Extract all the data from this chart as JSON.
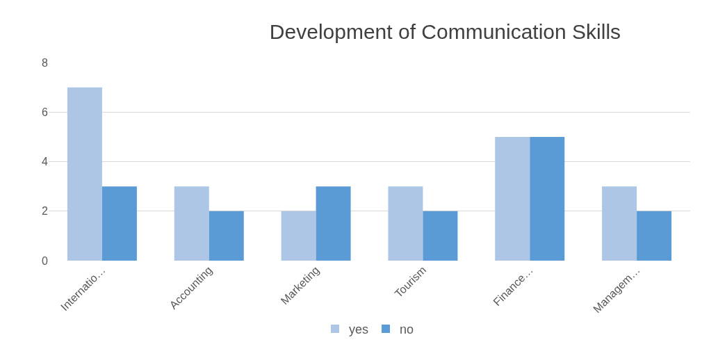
{
  "chart_data": {
    "type": "bar",
    "title": "Development of Communication Skills",
    "categories": [
      "Internatio…",
      "Accounting",
      "Marketing",
      "Tourism",
      "Finance…",
      "Managem…"
    ],
    "series": [
      {
        "name": "yes",
        "color": "#adc6e6",
        "values": [
          7,
          3,
          2,
          3,
          5,
          3
        ]
      },
      {
        "name": "no",
        "color": "#5b9bd5",
        "values": [
          3,
          2,
          3,
          2,
          5,
          2
        ]
      }
    ],
    "ylim": [
      0,
      8
    ],
    "yticks": [
      0,
      2,
      4,
      6,
      8
    ],
    "grid": "y",
    "legend": "bottom"
  }
}
